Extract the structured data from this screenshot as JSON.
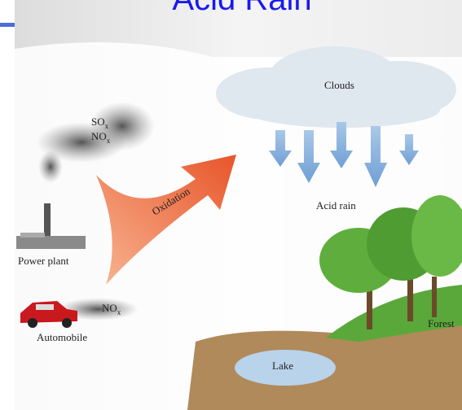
{
  "title": "Acid Rain",
  "emissions": {
    "power_plant": [
      {
        "formula": "SO",
        "subscript": "x"
      },
      {
        "formula": "NO",
        "subscript": "x"
      }
    ],
    "automobile": [
      {
        "formula": "NO",
        "subscript": "x"
      }
    ]
  },
  "labels": {
    "power_plant": "Power plant",
    "automobile": "Automobile",
    "oxidation": "Oxidation",
    "clouds": "Clouds",
    "acid_rain": "Acid rain",
    "lake": "Lake",
    "forest": "Forest"
  }
}
